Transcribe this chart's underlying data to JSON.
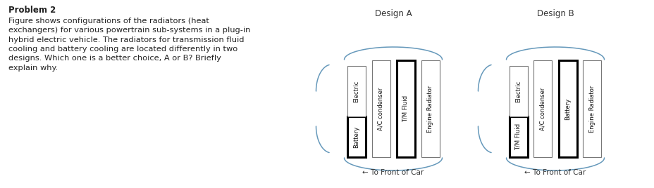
{
  "title_bold": "Problem 2",
  "body_text": "Figure shows configurations of the radiators (heat\nexchangers) for various powertrain sub-systems in a plug-in\nhybrid electric vehicle. The radiators for transmission fluid\ncooling and battery cooling are located differently in two\ndesigns. Which one is a better choice, A or B? Briefly\nexplain why.",
  "design_a_title": "Design A",
  "design_b_title": "Design B",
  "design_a_cols": [
    {
      "top": "Electric",
      "bot": "Battery",
      "top_bold": false,
      "bot_bold": true
    },
    {
      "top": "A/C condenser",
      "bot": null,
      "top_bold": false,
      "bot_bold": false
    },
    {
      "top": "T/M Fluid",
      "bot": null,
      "top_bold": true,
      "bot_bold": false
    },
    {
      "top": "Engine Radiator",
      "bot": null,
      "top_bold": false,
      "bot_bold": false
    }
  ],
  "design_b_cols": [
    {
      "top": "Electric",
      "bot": "T/M Fluid",
      "top_bold": false,
      "bot_bold": true
    },
    {
      "top": "A/C condenser",
      "bot": null,
      "top_bold": false,
      "bot_bold": false
    },
    {
      "top": "Battery",
      "bot": null,
      "top_bold": true,
      "bot_bold": false
    },
    {
      "top": "Engine Radiator",
      "bot": null,
      "top_bold": false,
      "bot_bold": false
    }
  ],
  "arrow_text": "← To Front of Car",
  "bg_color": "#ffffff",
  "box_edge_normal": "#777777",
  "box_edge_bold": "#000000",
  "text_color": "#222222",
  "curve_color": "#6699bb"
}
